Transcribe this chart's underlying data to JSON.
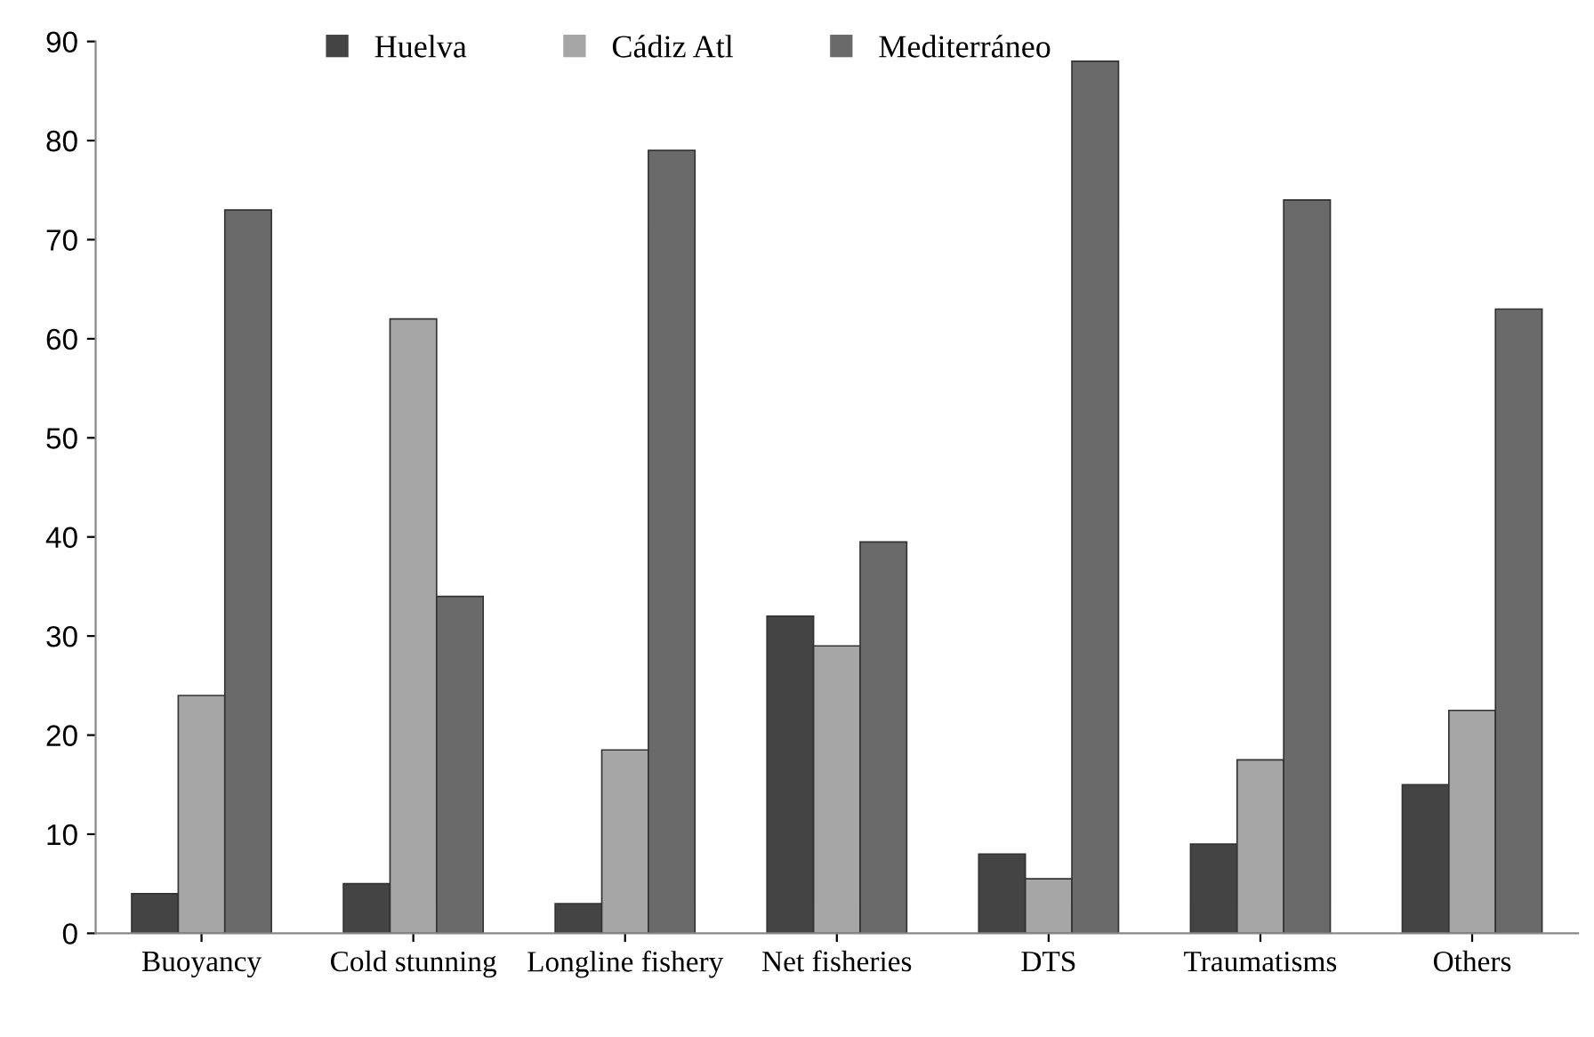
{
  "chart_data": {
    "type": "bar",
    "categories": [
      "Buoyancy",
      "Cold stunning",
      "Longline fishery",
      "Net fisheries",
      "DTS",
      "Traumatisms",
      "Others"
    ],
    "series": [
      {
        "name": "Huelva",
        "color": "#444444",
        "values": [
          4,
          5,
          3,
          32,
          8,
          9,
          15
        ]
      },
      {
        "name": "Cádiz Atl",
        "color": "#a6a6a6",
        "values": [
          24,
          62,
          18.5,
          29,
          5.5,
          17.5,
          22.5
        ]
      },
      {
        "name": "Mediterráneo",
        "color": "#6a6a6a",
        "values": [
          73,
          34,
          79,
          39.5,
          88,
          74,
          63
        ]
      }
    ],
    "ylim": [
      0,
      90
    ],
    "yticks": [
      0,
      10,
      20,
      30,
      40,
      50,
      60,
      70,
      80,
      90
    ],
    "grid": false,
    "legend": "top"
  }
}
